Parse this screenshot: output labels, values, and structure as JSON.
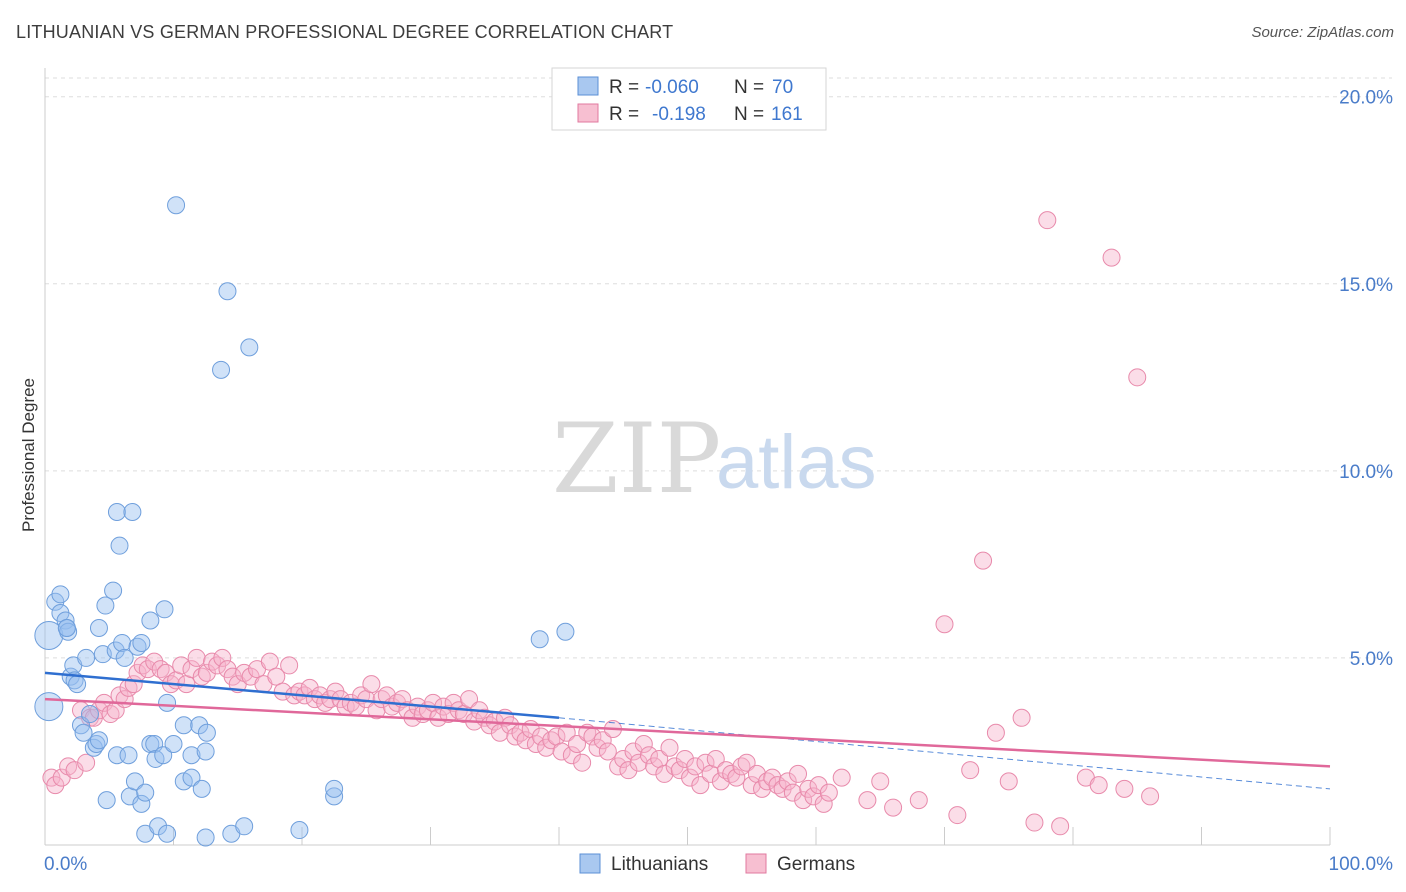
{
  "header": {
    "title": "LITHUANIAN VS GERMAN PROFESSIONAL DEGREE CORRELATION CHART",
    "source": "Source: ZipAtlas.com"
  },
  "watermark": {
    "zip": "ZIP",
    "atlas": "atlas"
  },
  "legend_top": {
    "rows": [
      {
        "r_label": "R =",
        "r_value": "-0.060",
        "n_label": "N =",
        "n_value": "70",
        "color": "#a9c8f0",
        "stroke": "#5b8fd6"
      },
      {
        "r_label": "R =",
        "r_value": "-0.198",
        "n_label": "N =",
        "n_value": "161",
        "color": "#f7bfd1",
        "stroke": "#e07a9f"
      }
    ]
  },
  "legend_bottom": [
    {
      "label": "Lithuanians",
      "color": "#a9c8f0",
      "stroke": "#5b8fd6"
    },
    {
      "label": "Germans",
      "color": "#f7bfd1",
      "stroke": "#e07a9f"
    }
  ],
  "colors": {
    "blue_fill": "rgba(150,190,240,0.45)",
    "blue_stroke": "#6f9fdc",
    "blue_line": "#2f6fd0",
    "pink_fill": "rgba(247,180,205,0.45)",
    "pink_stroke": "#e88aab",
    "pink_line": "#e0689a",
    "tick_label": "#4a7cc9",
    "grid": "#dddddd"
  },
  "chart_data": {
    "type": "scatter",
    "title": "LITHUANIAN VS GERMAN PROFESSIONAL DEGREE CORRELATION CHART",
    "xlabel": "",
    "ylabel": "Professional Degree",
    "xlim": [
      0,
      100
    ],
    "ylim": [
      0,
      20.5
    ],
    "x_tick_labels": [
      "0.0%",
      "100.0%"
    ],
    "y_ticks": [
      5,
      10,
      15,
      20
    ],
    "y_tick_labels": [
      "5.0%",
      "10.0%",
      "15.0%",
      "20.0%"
    ],
    "grid": true,
    "legend_position": "top-center",
    "series": [
      {
        "name": "Lithuanians",
        "r": -0.06,
        "n": 70,
        "trend": {
          "x0": 0,
          "y0": 4.6,
          "x1": 40,
          "y1": 3.4,
          "dashed_to_x": 100,
          "dashed_to_y": 1.5
        },
        "points": [
          [
            0.3,
            3.7
          ],
          [
            0.3,
            5.6
          ],
          [
            0.8,
            6.5
          ],
          [
            1.2,
            6.2
          ],
          [
            1.2,
            6.7
          ],
          [
            1.6,
            6.0
          ],
          [
            1.7,
            5.8
          ],
          [
            1.8,
            5.7
          ],
          [
            1.7,
            5.8
          ],
          [
            2.0,
            4.5
          ],
          [
            2.2,
            4.8
          ],
          [
            2.3,
            4.4
          ],
          [
            2.5,
            4.3
          ],
          [
            2.8,
            3.2
          ],
          [
            3.0,
            3.0
          ],
          [
            3.2,
            5.0
          ],
          [
            3.5,
            3.5
          ],
          [
            3.8,
            2.6
          ],
          [
            4.0,
            2.7
          ],
          [
            4.2,
            2.8
          ],
          [
            4.2,
            5.8
          ],
          [
            4.5,
            5.1
          ],
          [
            4.7,
            6.4
          ],
          [
            4.8,
            1.2
          ],
          [
            5.3,
            6.8
          ],
          [
            5.5,
            5.2
          ],
          [
            5.6,
            2.4
          ],
          [
            5.6,
            8.9
          ],
          [
            5.8,
            8.0
          ],
          [
            6.0,
            5.4
          ],
          [
            6.2,
            5.0
          ],
          [
            6.5,
            2.4
          ],
          [
            6.6,
            1.3
          ],
          [
            6.8,
            8.9
          ],
          [
            7.0,
            1.7
          ],
          [
            7.2,
            5.3
          ],
          [
            7.5,
            5.4
          ],
          [
            7.5,
            1.1
          ],
          [
            7.8,
            1.4
          ],
          [
            7.8,
            0.3
          ],
          [
            8.2,
            2.7
          ],
          [
            8.2,
            6.0
          ],
          [
            8.5,
            2.7
          ],
          [
            8.6,
            2.3
          ],
          [
            8.8,
            0.5
          ],
          [
            9.2,
            2.4
          ],
          [
            9.3,
            6.3
          ],
          [
            9.5,
            0.3
          ],
          [
            9.5,
            3.8
          ],
          [
            10.0,
            2.7
          ],
          [
            10.2,
            17.1
          ],
          [
            10.8,
            1.7
          ],
          [
            10.8,
            3.2
          ],
          [
            11.4,
            1.8
          ],
          [
            11.4,
            2.4
          ],
          [
            12.0,
            3.2
          ],
          [
            12.2,
            1.5
          ],
          [
            12.5,
            0.2
          ],
          [
            12.5,
            2.5
          ],
          [
            12.6,
            3.0
          ],
          [
            13.7,
            12.7
          ],
          [
            14.2,
            14.8
          ],
          [
            14.5,
            0.3
          ],
          [
            15.5,
            0.5
          ],
          [
            15.9,
            13.3
          ],
          [
            19.8,
            0.4
          ],
          [
            22.5,
            1.3
          ],
          [
            22.5,
            1.5
          ],
          [
            38.5,
            5.5
          ],
          [
            40.5,
            5.7
          ]
        ]
      },
      {
        "name": "Germans",
        "r": -0.198,
        "n": 161,
        "trend": {
          "x0": 0,
          "y0": 3.9,
          "x1": 100,
          "y1": 2.1
        },
        "points": [
          [
            0.5,
            1.8
          ],
          [
            0.8,
            1.6
          ],
          [
            1.3,
            1.8
          ],
          [
            1.8,
            2.1
          ],
          [
            2.3,
            2.0
          ],
          [
            2.8,
            3.6
          ],
          [
            3.2,
            2.2
          ],
          [
            3.5,
            3.4
          ],
          [
            3.8,
            3.4
          ],
          [
            4.2,
            3.6
          ],
          [
            4.6,
            3.8
          ],
          [
            5.1,
            3.5
          ],
          [
            5.5,
            3.6
          ],
          [
            5.8,
            4.0
          ],
          [
            6.2,
            3.9
          ],
          [
            6.5,
            4.2
          ],
          [
            6.9,
            4.3
          ],
          [
            7.2,
            4.6
          ],
          [
            7.6,
            4.8
          ],
          [
            8.0,
            4.7
          ],
          [
            8.5,
            4.9
          ],
          [
            9.0,
            4.7
          ],
          [
            9.4,
            4.6
          ],
          [
            9.8,
            4.3
          ],
          [
            10.2,
            4.4
          ],
          [
            10.6,
            4.8
          ],
          [
            11.0,
            4.3
          ],
          [
            11.4,
            4.7
          ],
          [
            11.8,
            5.0
          ],
          [
            12.2,
            4.5
          ],
          [
            12.6,
            4.6
          ],
          [
            13.0,
            4.9
          ],
          [
            13.4,
            4.8
          ],
          [
            13.8,
            5.0
          ],
          [
            14.2,
            4.7
          ],
          [
            14.6,
            4.5
          ],
          [
            15.0,
            4.3
          ],
          [
            15.5,
            4.6
          ],
          [
            16.0,
            4.5
          ],
          [
            16.5,
            4.7
          ],
          [
            17.0,
            4.3
          ],
          [
            17.5,
            4.9
          ],
          [
            18.0,
            4.5
          ],
          [
            18.5,
            4.1
          ],
          [
            19.0,
            4.8
          ],
          [
            19.4,
            4.0
          ],
          [
            19.8,
            4.1
          ],
          [
            20.2,
            4.0
          ],
          [
            20.6,
            4.2
          ],
          [
            21.0,
            3.9
          ],
          [
            21.4,
            4.0
          ],
          [
            21.8,
            3.8
          ],
          [
            22.2,
            3.9
          ],
          [
            22.6,
            4.1
          ],
          [
            23.0,
            3.9
          ],
          [
            23.4,
            3.7
          ],
          [
            23.8,
            3.8
          ],
          [
            24.2,
            3.7
          ],
          [
            24.6,
            4.0
          ],
          [
            25.0,
            3.9
          ],
          [
            25.4,
            4.3
          ],
          [
            25.8,
            3.6
          ],
          [
            26.2,
            3.9
          ],
          [
            26.6,
            4.0
          ],
          [
            27.0,
            3.7
          ],
          [
            27.4,
            3.8
          ],
          [
            27.8,
            3.9
          ],
          [
            28.2,
            3.6
          ],
          [
            28.6,
            3.4
          ],
          [
            29.0,
            3.7
          ],
          [
            29.4,
            3.5
          ],
          [
            29.8,
            3.6
          ],
          [
            30.2,
            3.8
          ],
          [
            30.6,
            3.4
          ],
          [
            31.0,
            3.7
          ],
          [
            31.4,
            3.5
          ],
          [
            31.8,
            3.8
          ],
          [
            32.2,
            3.6
          ],
          [
            32.6,
            3.5
          ],
          [
            33.0,
            3.9
          ],
          [
            33.4,
            3.3
          ],
          [
            33.8,
            3.6
          ],
          [
            34.2,
            3.4
          ],
          [
            34.6,
            3.2
          ],
          [
            35.0,
            3.3
          ],
          [
            35.4,
            3.0
          ],
          [
            35.8,
            3.4
          ],
          [
            36.2,
            3.2
          ],
          [
            36.6,
            2.9
          ],
          [
            37.0,
            3.0
          ],
          [
            37.4,
            2.8
          ],
          [
            37.8,
            3.1
          ],
          [
            38.2,
            2.7
          ],
          [
            38.6,
            2.9
          ],
          [
            39.0,
            2.6
          ],
          [
            39.4,
            2.8
          ],
          [
            39.8,
            2.9
          ],
          [
            40.2,
            2.5
          ],
          [
            40.6,
            3.0
          ],
          [
            41.0,
            2.4
          ],
          [
            41.4,
            2.7
          ],
          [
            41.8,
            2.2
          ],
          [
            42.2,
            3.0
          ],
          [
            42.6,
            2.9
          ],
          [
            43.0,
            2.6
          ],
          [
            43.4,
            2.8
          ],
          [
            43.8,
            2.5
          ],
          [
            44.2,
            3.1
          ],
          [
            44.6,
            2.1
          ],
          [
            45.0,
            2.3
          ],
          [
            45.4,
            2.0
          ],
          [
            45.8,
            2.5
          ],
          [
            46.2,
            2.2
          ],
          [
            46.6,
            2.7
          ],
          [
            47.0,
            2.4
          ],
          [
            47.4,
            2.1
          ],
          [
            47.8,
            2.3
          ],
          [
            48.2,
            1.9
          ],
          [
            48.6,
            2.6
          ],
          [
            49.0,
            2.1
          ],
          [
            49.4,
            2.0
          ],
          [
            49.8,
            2.3
          ],
          [
            50.2,
            1.8
          ],
          [
            50.6,
            2.1
          ],
          [
            51.0,
            1.6
          ],
          [
            51.4,
            2.2
          ],
          [
            51.8,
            1.9
          ],
          [
            52.2,
            2.3
          ],
          [
            52.6,
            1.7
          ],
          [
            53.0,
            2.0
          ],
          [
            53.4,
            1.9
          ],
          [
            53.8,
            1.8
          ],
          [
            54.2,
            2.1
          ],
          [
            54.6,
            2.2
          ],
          [
            55.0,
            1.6
          ],
          [
            55.4,
            1.9
          ],
          [
            55.8,
            1.5
          ],
          [
            56.2,
            1.7
          ],
          [
            56.6,
            1.8
          ],
          [
            57.0,
            1.6
          ],
          [
            57.4,
            1.5
          ],
          [
            57.8,
            1.7
          ],
          [
            58.2,
            1.4
          ],
          [
            58.6,
            1.9
          ],
          [
            59.0,
            1.2
          ],
          [
            59.4,
            1.5
          ],
          [
            59.8,
            1.3
          ],
          [
            60.2,
            1.6
          ],
          [
            60.6,
            1.1
          ],
          [
            61.0,
            1.4
          ],
          [
            62.0,
            1.8
          ],
          [
            64.0,
            1.2
          ],
          [
            65.0,
            1.7
          ],
          [
            66.0,
            1.0
          ],
          [
            68.0,
            1.2
          ],
          [
            70.0,
            5.9
          ],
          [
            71.0,
            0.8
          ],
          [
            72.0,
            2.0
          ],
          [
            73.0,
            7.6
          ],
          [
            74.0,
            3.0
          ],
          [
            75.0,
            1.7
          ],
          [
            76.0,
            3.4
          ],
          [
            77.0,
            0.6
          ],
          [
            78.0,
            16.7
          ],
          [
            79.0,
            0.5
          ],
          [
            81.0,
            1.8
          ],
          [
            82.0,
            1.6
          ],
          [
            83.0,
            15.7
          ],
          [
            84.0,
            1.5
          ],
          [
            85.0,
            12.5
          ],
          [
            86.0,
            1.3
          ]
        ]
      }
    ]
  }
}
